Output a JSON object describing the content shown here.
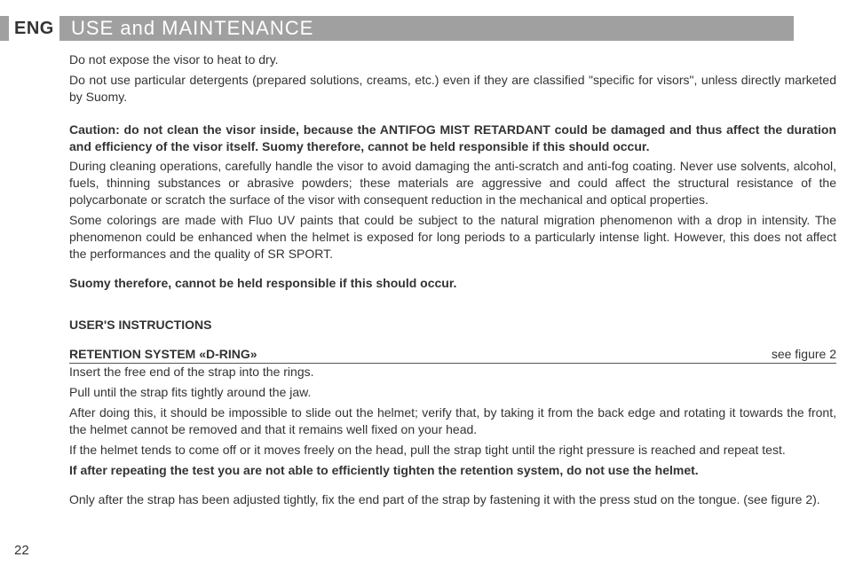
{
  "header": {
    "lang": "ENG",
    "title": "USE and MAINTENANCE"
  },
  "intro": {
    "p1": "Do not expose the visor to heat to dry.",
    "p2": "Do not use particular detergents (prepared solutions, creams, etc.) even if they are classified \"specific for visors\", unless directly marketed by Suomy."
  },
  "caution": {
    "bold": "Caution: do not clean the visor inside, because the ANTIFOG MIST RETARDANT could be damaged and thus affect the duration and efficiency of the visor itself. Suomy therefore, cannot be held responsible if this should occur.",
    "p1": "During cleaning operations, carefully handle the visor to avoid damaging the anti-scratch and anti-fog coating. Never use solvents, alcohol, fuels, thinning substances or abrasive powders; these materials are aggressive and could affect the structural resistance of the polycarbonate or scratch the surface of the visor with consequent reduction in the mechanical and optical properties.",
    "p2": "Some colorings are made with Fluo UV paints that could be subject to the natural migration phenomenon with a drop in intensity. The phenomenon could be enhanced when the helmet is exposed for long periods to a particularly intense light. However, this does not affect the performances and the quality of SR SPORT."
  },
  "responsibility": "Suomy therefore, cannot be held responsible if this should occur.",
  "instructions_heading": "USER'S INSTRUCTIONS",
  "retention": {
    "title": "RETENTION SYSTEM «D-RING»",
    "see": "see figure 2",
    "p1": "Insert the free end of the strap into the rings.",
    "p2": "Pull until the strap fits tightly around the jaw.",
    "p3": "After doing this, it should be impossible to slide out the helmet; verify that, by taking it from the back edge and rotating it towards the front, the helmet cannot be removed and that it remains well fixed on your head.",
    "p4": "If the helmet tends to come off or it moves freely on the head, pull the strap tight until the right pressure is reached and repeat test.",
    "bold": "If after repeating the test you are not able to efficiently tighten the retention system, do not use the helmet.",
    "p5": "Only after the strap has been adjusted tightly, fix the end part of the strap by fastening it with the press stud on the tongue. (see figure 2)."
  },
  "page_number": "22"
}
